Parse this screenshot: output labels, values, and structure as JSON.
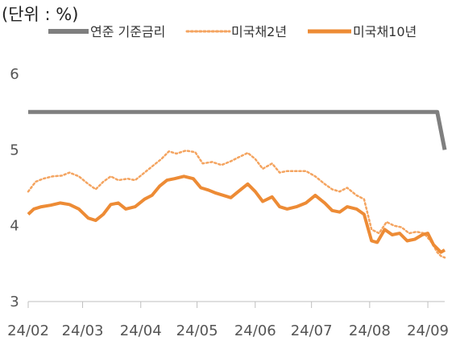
{
  "unit_label": "(단위 : %)",
  "chart_data": {
    "type": "line",
    "title": "",
    "xlabel": "",
    "ylabel": "",
    "ylim": [
      3,
      6
    ],
    "yticks": [
      "6",
      "5",
      "4",
      "3"
    ],
    "x_range": [
      "2024-02-01",
      "2024-09-10"
    ],
    "x_ticks": [
      {
        "label": "24/02",
        "date": "2024-02-01"
      },
      {
        "label": "24/03",
        "date": "2024-03-01"
      },
      {
        "label": "24/04",
        "date": "2024-04-01"
      },
      {
        "label": "24/05",
        "date": "2024-05-01"
      },
      {
        "label": "24/06",
        "date": "2024-06-01"
      },
      {
        "label": "24/07",
        "date": "2024-07-01"
      },
      {
        "label": "24/08",
        "date": "2024-08-01"
      },
      {
        "label": "24/09",
        "date": "2024-09-01"
      }
    ],
    "grid": false,
    "legend_position": "top",
    "series": [
      {
        "name": "연준 기준금리",
        "color": "#7f7f7f",
        "style": "solid-thick",
        "points": [
          [
            "2024-02-01",
            5.5
          ],
          [
            "2024-09-06",
            5.5
          ],
          [
            "2024-09-10",
            5.0
          ]
        ]
      },
      {
        "name": "미국채2년",
        "color": "#f4a460",
        "style": "dotted",
        "points": [
          [
            "2024-02-01",
            4.45
          ],
          [
            "2024-02-05",
            4.58
          ],
          [
            "2024-02-09",
            4.62
          ],
          [
            "2024-02-14",
            4.65
          ],
          [
            "2024-02-19",
            4.66
          ],
          [
            "2024-02-23",
            4.7
          ],
          [
            "2024-02-28",
            4.65
          ],
          [
            "2024-03-04",
            4.55
          ],
          [
            "2024-03-08",
            4.48
          ],
          [
            "2024-03-12",
            4.58
          ],
          [
            "2024-03-16",
            4.65
          ],
          [
            "2024-03-20",
            4.6
          ],
          [
            "2024-03-25",
            4.62
          ],
          [
            "2024-03-29",
            4.6
          ],
          [
            "2024-04-03",
            4.7
          ],
          [
            "2024-04-08",
            4.8
          ],
          [
            "2024-04-12",
            4.88
          ],
          [
            "2024-04-16",
            4.98
          ],
          [
            "2024-04-20",
            4.95
          ],
          [
            "2024-04-25",
            4.99
          ],
          [
            "2024-04-30",
            4.97
          ],
          [
            "2024-05-04",
            4.82
          ],
          [
            "2024-05-09",
            4.84
          ],
          [
            "2024-05-14",
            4.8
          ],
          [
            "2024-05-19",
            4.85
          ],
          [
            "2024-05-23",
            4.9
          ],
          [
            "2024-05-28",
            4.96
          ],
          [
            "2024-06-01",
            4.88
          ],
          [
            "2024-06-05",
            4.75
          ],
          [
            "2024-06-10",
            4.82
          ],
          [
            "2024-06-14",
            4.7
          ],
          [
            "2024-06-18",
            4.72
          ],
          [
            "2024-06-23",
            4.72
          ],
          [
            "2024-06-28",
            4.72
          ],
          [
            "2024-07-03",
            4.65
          ],
          [
            "2024-07-08",
            4.55
          ],
          [
            "2024-07-12",
            4.48
          ],
          [
            "2024-07-16",
            4.45
          ],
          [
            "2024-07-20",
            4.5
          ],
          [
            "2024-07-25",
            4.4
          ],
          [
            "2024-07-29",
            4.35
          ],
          [
            "2024-08-02",
            3.95
          ],
          [
            "2024-08-06",
            3.9
          ],
          [
            "2024-08-10",
            4.05
          ],
          [
            "2024-08-14",
            4.0
          ],
          [
            "2024-08-18",
            3.98
          ],
          [
            "2024-08-22",
            3.9
          ],
          [
            "2024-08-26",
            3.92
          ],
          [
            "2024-08-30",
            3.9
          ],
          [
            "2024-09-03",
            3.78
          ],
          [
            "2024-09-06",
            3.65
          ],
          [
            "2024-09-08",
            3.6
          ],
          [
            "2024-09-10",
            3.58
          ]
        ]
      },
      {
        "name": "미국채10년",
        "color": "#ed8b35",
        "style": "solid",
        "points": [
          [
            "2024-02-01",
            4.15
          ],
          [
            "2024-02-04",
            4.22
          ],
          [
            "2024-02-08",
            4.25
          ],
          [
            "2024-02-13",
            4.27
          ],
          [
            "2024-02-18",
            4.3
          ],
          [
            "2024-02-23",
            4.28
          ],
          [
            "2024-02-28",
            4.22
          ],
          [
            "2024-03-04",
            4.1
          ],
          [
            "2024-03-08",
            4.07
          ],
          [
            "2024-03-12",
            4.15
          ],
          [
            "2024-03-16",
            4.28
          ],
          [
            "2024-03-20",
            4.3
          ],
          [
            "2024-03-24",
            4.22
          ],
          [
            "2024-03-29",
            4.25
          ],
          [
            "2024-04-03",
            4.35
          ],
          [
            "2024-04-07",
            4.4
          ],
          [
            "2024-04-11",
            4.52
          ],
          [
            "2024-04-15",
            4.6
          ],
          [
            "2024-04-19",
            4.62
          ],
          [
            "2024-04-24",
            4.65
          ],
          [
            "2024-04-29",
            4.62
          ],
          [
            "2024-05-03",
            4.5
          ],
          [
            "2024-05-07",
            4.47
          ],
          [
            "2024-05-11",
            4.43
          ],
          [
            "2024-05-15",
            4.4
          ],
          [
            "2024-05-19",
            4.37
          ],
          [
            "2024-05-23",
            4.45
          ],
          [
            "2024-05-28",
            4.55
          ],
          [
            "2024-06-01",
            4.45
          ],
          [
            "2024-06-05",
            4.32
          ],
          [
            "2024-06-10",
            4.38
          ],
          [
            "2024-06-14",
            4.25
          ],
          [
            "2024-06-18",
            4.22
          ],
          [
            "2024-06-23",
            4.25
          ],
          [
            "2024-06-28",
            4.3
          ],
          [
            "2024-07-03",
            4.4
          ],
          [
            "2024-07-08",
            4.3
          ],
          [
            "2024-07-12",
            4.2
          ],
          [
            "2024-07-16",
            4.18
          ],
          [
            "2024-07-20",
            4.25
          ],
          [
            "2024-07-25",
            4.22
          ],
          [
            "2024-07-29",
            4.15
          ],
          [
            "2024-08-02",
            3.8
          ],
          [
            "2024-08-05",
            3.78
          ],
          [
            "2024-08-09",
            3.95
          ],
          [
            "2024-08-13",
            3.88
          ],
          [
            "2024-08-17",
            3.9
          ],
          [
            "2024-08-21",
            3.8
          ],
          [
            "2024-08-25",
            3.82
          ],
          [
            "2024-08-29",
            3.88
          ],
          [
            "2024-09-01",
            3.9
          ],
          [
            "2024-09-04",
            3.75
          ],
          [
            "2024-09-06",
            3.7
          ],
          [
            "2024-09-08",
            3.65
          ],
          [
            "2024-09-10",
            3.68
          ]
        ]
      }
    ]
  }
}
